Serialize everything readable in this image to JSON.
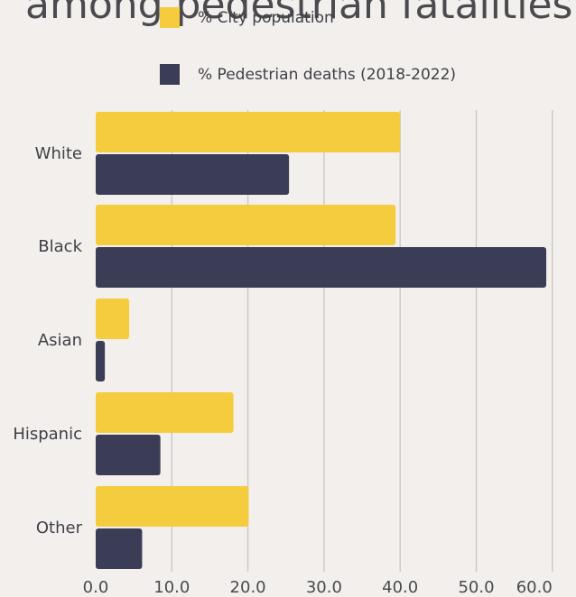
{
  "title": "among pedestrian fatalities?",
  "chart_data": {
    "type": "bar",
    "orientation": "horizontal",
    "title": "among pedestrian fatalities?",
    "categories": [
      "White",
      "Black",
      "Asian",
      "Hispanic",
      "Other"
    ],
    "series": [
      {
        "name": "% City population",
        "color": "#f5cc3d",
        "values": [
          40.0,
          39.4,
          4.4,
          18.1,
          20.1
        ]
      },
      {
        "name": "% Pedestrian deaths (2018-2022)",
        "color": "#3b3d57",
        "values": [
          25.4,
          59.2,
          1.2,
          8.5,
          6.1
        ]
      }
    ],
    "x_ticks": [
      "0.0",
      "10.0",
      "20.0",
      "30.0",
      "40.0",
      "50.0",
      "60.0"
    ],
    "xlim": [
      0,
      60
    ],
    "grid": "vertical",
    "legend_position": "top"
  }
}
